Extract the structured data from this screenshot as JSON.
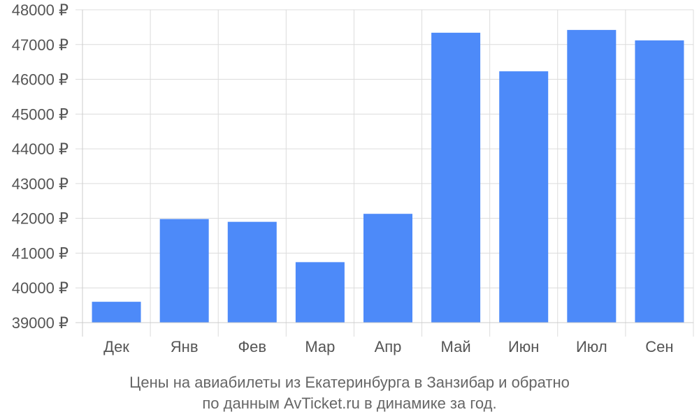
{
  "chart_data": {
    "type": "bar",
    "categories": [
      "Дек",
      "Янв",
      "Фев",
      "Мар",
      "Апр",
      "Май",
      "Июн",
      "Июл",
      "Сен"
    ],
    "values": [
      39600,
      41980,
      41900,
      40740,
      42130,
      47340,
      46230,
      47420,
      47120
    ],
    "y_tick_labels": [
      "39000 ₽",
      "40000 ₽",
      "41000 ₽",
      "42000 ₽",
      "43000 ₽",
      "44000 ₽",
      "45000 ₽",
      "46000 ₽",
      "47000 ₽",
      "48000 ₽"
    ],
    "ylim": [
      39000,
      48000
    ],
    "y_tick_step": 1000,
    "bar_color": "#4d8af9",
    "grid": true,
    "title": "",
    "xlabel": "",
    "ylabel": ""
  },
  "caption": {
    "line1": "Цены на авиабилеты из Екатеринбурга в Занзибар и обратно",
    "line2": "по данным AvTicket.ru в динамике за год."
  }
}
